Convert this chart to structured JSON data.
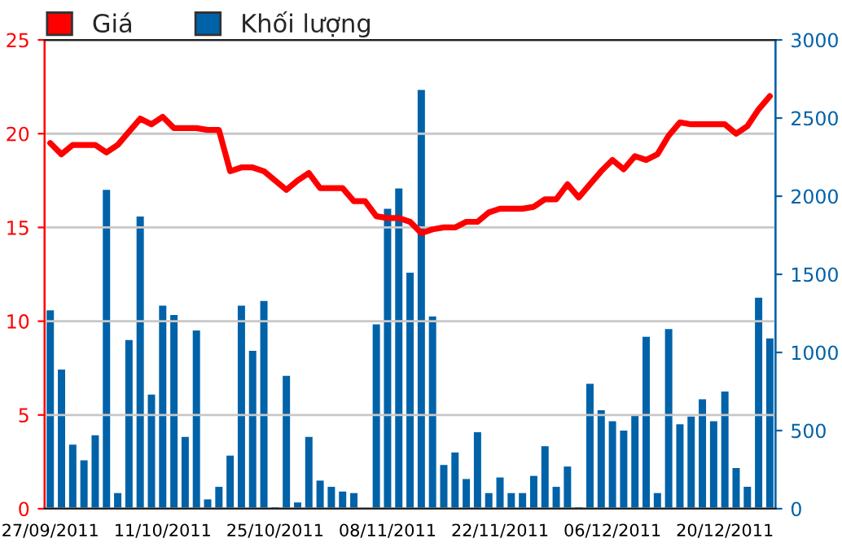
{
  "chart_data": {
    "type": "line",
    "categories": [
      "27/09/2011",
      null,
      null,
      null,
      null,
      null,
      null,
      null,
      null,
      null,
      "11/10/2011",
      null,
      null,
      null,
      null,
      null,
      null,
      null,
      null,
      null,
      "25/10/2011",
      null,
      null,
      null,
      null,
      null,
      null,
      null,
      null,
      null,
      "08/11/2011",
      null,
      null,
      null,
      null,
      null,
      null,
      null,
      null,
      null,
      "22/11/2011",
      null,
      null,
      null,
      null,
      null,
      null,
      null,
      null,
      null,
      "06/12/2011",
      null,
      null,
      null,
      null,
      null,
      null,
      null,
      null,
      null,
      "20/12/2011",
      null,
      null,
      null,
      null
    ],
    "series": [
      {
        "name": "Giá",
        "color": "#ff0000",
        "values": [
          19.5,
          18.9,
          19.4,
          19.4,
          19.4,
          19.0,
          19.4,
          20.1,
          20.8,
          20.5,
          20.9,
          20.3,
          20.3,
          20.3,
          20.2,
          20.2,
          18.0,
          18.2,
          18.2,
          18.0,
          17.5,
          17.0,
          17.5,
          17.9,
          17.1,
          17.1,
          17.1,
          16.4,
          16.4,
          15.6,
          15.5,
          15.5,
          15.3,
          14.7,
          14.9,
          15.0,
          15.0,
          15.3,
          15.3,
          15.8,
          16.0,
          16.0,
          16.0,
          16.1,
          16.5,
          16.5,
          17.3,
          16.6,
          17.3,
          18.0,
          18.6,
          18.1,
          18.8,
          18.6,
          18.9,
          19.9,
          20.6,
          20.5,
          20.5,
          20.5,
          20.5,
          20.0,
          20.4,
          21.3,
          22.0
        ]
      },
      {
        "name": "Khối lượng",
        "type": "bar",
        "axis": "y2",
        "color": "#0062a8",
        "values": [
          1270,
          890,
          410,
          310,
          470,
          2040,
          100,
          1080,
          1870,
          730,
          1300,
          1240,
          460,
          1140,
          60,
          140,
          340,
          1300,
          1010,
          1330,
          10,
          850,
          40,
          460,
          180,
          140,
          110,
          100,
          null,
          1180,
          1920,
          2050,
          1510,
          2680,
          1230,
          280,
          360,
          190,
          490,
          100,
          200,
          100,
          100,
          210,
          400,
          140,
          270,
          10,
          800,
          630,
          560,
          500,
          600,
          1100,
          100,
          1150,
          540,
          590,
          700,
          560,
          750,
          260,
          140,
          1350,
          1090
        ]
      }
    ],
    "ylim": [
      0,
      25
    ],
    "yticks": [
      0,
      5,
      10,
      15,
      20,
      25
    ],
    "y2lim": [
      0,
      3000
    ],
    "y2ticks": [
      0,
      500,
      1000,
      1500,
      2000,
      2500,
      3000
    ],
    "grid": "y",
    "legend": "top left"
  }
}
